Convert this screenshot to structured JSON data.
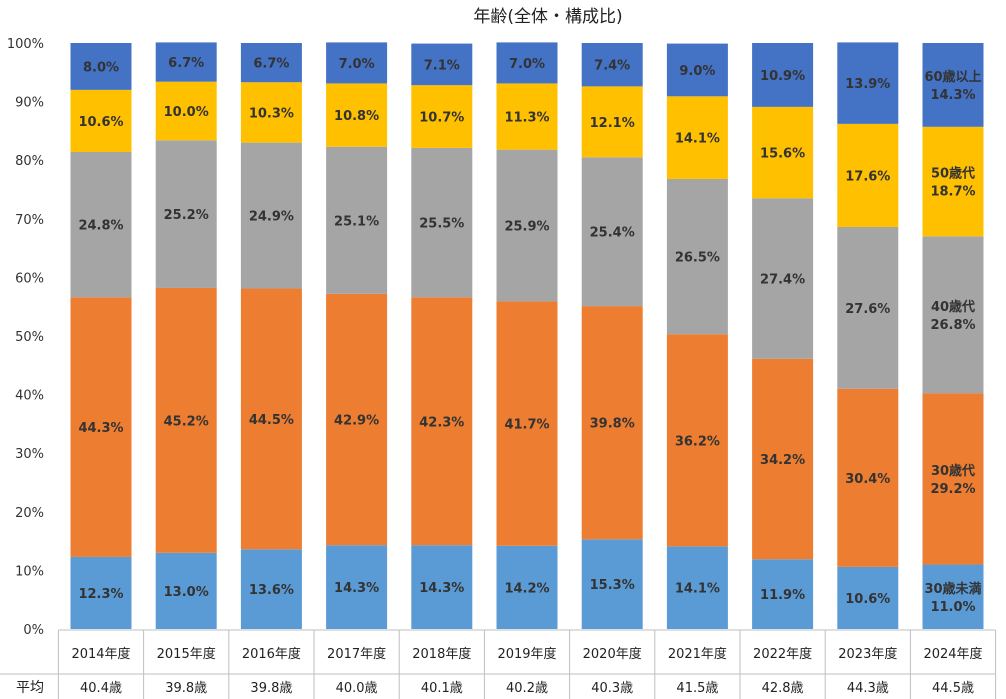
{
  "chart_data": {
    "type": "bar",
    "stacked": true,
    "title": "年齢(全体・構成比)",
    "ylim": [
      0,
      100
    ],
    "yticks": [
      "0%",
      "10%",
      "20%",
      "30%",
      "40%",
      "50%",
      "60%",
      "70%",
      "80%",
      "90%",
      "100%"
    ],
    "grid": false,
    "categories": [
      "2014年度",
      "2015年度",
      "2016年度",
      "2017年度",
      "2018年度",
      "2019年度",
      "2020年度",
      "2021年度",
      "2022年度",
      "2023年度",
      "2024年度"
    ],
    "series": [
      {
        "name": "30歳未満",
        "color": "#5B9BD5",
        "values": [
          12.3,
          13.0,
          13.6,
          14.3,
          14.3,
          14.2,
          15.3,
          14.1,
          11.9,
          10.6,
          11.0
        ],
        "labels": [
          "12.3%",
          "13.0%",
          "13.6%",
          "14.3%",
          "14.3%",
          "14.2%",
          "15.3%",
          "14.1%",
          "11.9%",
          "10.6%",
          "11.0%"
        ]
      },
      {
        "name": "30歳代",
        "color": "#ED7D31",
        "values": [
          44.3,
          45.2,
          44.5,
          42.9,
          42.3,
          41.7,
          39.8,
          36.2,
          34.2,
          30.4,
          29.2
        ],
        "labels": [
          "44.3%",
          "45.2%",
          "44.5%",
          "42.9%",
          "42.3%",
          "41.7%",
          "39.8%",
          "36.2%",
          "34.2%",
          "30.4%",
          "29.2%"
        ]
      },
      {
        "name": "40歳代",
        "color": "#A5A5A5",
        "values": [
          24.8,
          25.2,
          24.9,
          25.1,
          25.5,
          25.9,
          25.4,
          26.5,
          27.4,
          27.6,
          26.8
        ],
        "labels": [
          "24.8%",
          "25.2%",
          "24.9%",
          "25.1%",
          "25.5%",
          "25.9%",
          "25.4%",
          "26.5%",
          "27.4%",
          "27.6%",
          "26.8%"
        ]
      },
      {
        "name": "50歳代",
        "color": "#FFC000",
        "values": [
          10.6,
          10.0,
          10.3,
          10.8,
          10.7,
          11.3,
          12.1,
          14.1,
          15.6,
          17.6,
          18.7
        ],
        "labels": [
          "10.6%",
          "10.0%",
          "10.3%",
          "10.8%",
          "10.7%",
          "11.3%",
          "12.1%",
          "14.1%",
          "15.6%",
          "17.6%",
          "18.7%"
        ]
      },
      {
        "name": "60歳以上",
        "color": "#4472C4",
        "values": [
          8.0,
          6.7,
          6.7,
          7.0,
          7.1,
          7.0,
          7.4,
          9.0,
          10.9,
          13.9,
          14.3
        ],
        "labels": [
          "8.0%",
          "6.7%",
          "6.7%",
          "7.0%",
          "7.1%",
          "7.0%",
          "7.4%",
          "9.0%",
          "10.9%",
          "13.9%",
          "14.3%"
        ]
      }
    ],
    "legend_placement": "inline-last-bar",
    "average_row": {
      "header": "平均",
      "values": [
        "40.4歳",
        "39.8歳",
        "39.8歳",
        "40.0歳",
        "40.1歳",
        "40.2歳",
        "40.3歳",
        "41.5歳",
        "42.8歳",
        "44.3歳",
        "44.5歳"
      ]
    }
  }
}
